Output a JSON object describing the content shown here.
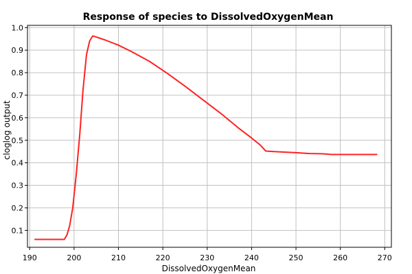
{
  "chart_data": {
    "type": "line",
    "title": "Response of species to DissolvedOxygenMean",
    "xlabel": "DissolvedOxygenMean",
    "ylabel": "cloglog output",
    "xlim": [
      189.5,
      271.5
    ],
    "ylim": [
      0.025,
      1.01
    ],
    "x_ticks": [
      190,
      200,
      210,
      220,
      230,
      240,
      250,
      260,
      270
    ],
    "y_ticks": [
      0.1,
      0.2,
      0.3,
      0.4,
      0.5,
      0.6,
      0.7,
      0.8,
      0.9,
      1.0
    ],
    "grid": true,
    "line_color": "#ff2020",
    "series": [
      {
        "x": [
          191.2,
          197.8,
          198.4,
          199.0,
          199.7,
          200.5,
          201.3,
          202.0,
          202.8,
          203.5,
          204.2,
          205.0,
          207.0,
          210.0,
          213.0,
          217.0,
          221.0,
          225.0,
          229.0,
          233.0,
          237.0,
          240.0,
          242.0,
          243.2,
          245.0,
          248.0,
          250.0,
          253.0,
          256.0,
          258.0,
          262.0,
          268.2
        ],
        "y": [
          0.06,
          0.06,
          0.08,
          0.12,
          0.2,
          0.35,
          0.53,
          0.72,
          0.88,
          0.94,
          0.963,
          0.958,
          0.945,
          0.922,
          0.893,
          0.85,
          0.797,
          0.74,
          0.68,
          0.62,
          0.555,
          0.51,
          0.478,
          0.452,
          0.45,
          0.447,
          0.445,
          0.441,
          0.44,
          0.437,
          0.437,
          0.437
        ]
      }
    ]
  }
}
